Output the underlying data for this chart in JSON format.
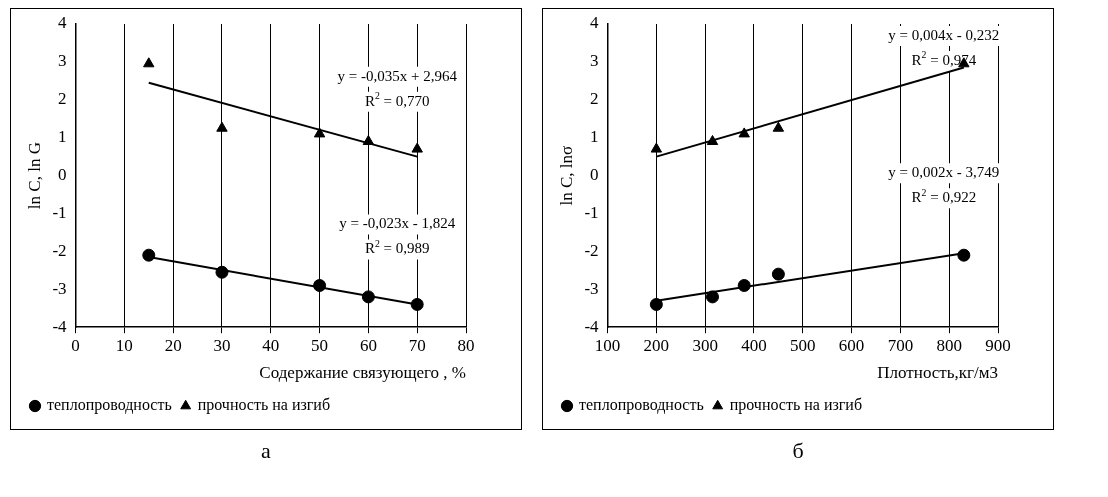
{
  "chart_data": [
    {
      "type": "scatter",
      "xlabel": "Содержание связующего , %",
      "ylabel": "ln C, ln G",
      "xlim": [
        0,
        80
      ],
      "xticks": [
        0,
        10,
        20,
        30,
        40,
        50,
        60,
        70,
        80
      ],
      "ylim": [
        -4,
        4
      ],
      "yticks": [
        -4,
        -3,
        -2,
        -1,
        0,
        1,
        2,
        3,
        4
      ],
      "grid": "x",
      "legend": "bottom left",
      "series": [
        {
          "name": "теплопроводность",
          "color": "#000000",
          "marker": "circle",
          "x": [
            15,
            30,
            50,
            60,
            70
          ],
          "values": [
            -2.1,
            -2.55,
            -2.9,
            -3.2,
            -3.4
          ]
        },
        {
          "name": "прочность на изгиб",
          "color": "#000000",
          "marker": "triangle",
          "x": [
            15,
            30,
            50,
            60,
            70
          ],
          "values": [
            2.95,
            1.25,
            1.1,
            0.9,
            0.7
          ]
        },
        {
          "type": "line",
          "color": "#000000",
          "marker": "none",
          "x": [
            15,
            70
          ],
          "values": [
            2.45,
            0.5
          ]
        },
        {
          "type": "line",
          "color": "#000000",
          "marker": "none",
          "x": [
            15,
            70
          ],
          "values": [
            -2.15,
            -3.4
          ]
        }
      ],
      "annotations": [
        "y = -0,035x + 2,964",
        "R$^{2}$ = 0,770",
        "y = -0,023x - 1,824",
        "R$^{2}$ = 0,989",
        "а"
      ]
    },
    {
      "type": "scatter",
      "xlabel": "Плотность,кг/м3",
      "ylabel": "ln C, lnσ",
      "xlim": [
        100,
        900
      ],
      "xticks": [
        100,
        200,
        300,
        400,
        500,
        600,
        700,
        800,
        900
      ],
      "ylim": [
        -4,
        4
      ],
      "yticks": [
        -4,
        -3,
        -2,
        -1,
        0,
        1,
        2,
        3,
        4
      ],
      "grid": "x",
      "legend": "bottom left",
      "series": [
        {
          "name": "теплопроводность",
          "color": "#000000",
          "marker": "circle",
          "x": [
            200,
            315,
            380,
            450,
            830
          ],
          "values": [
            -3.4,
            -3.2,
            -2.9,
            -2.6,
            -2.1
          ]
        },
        {
          "name": "прочность на изгиб",
          "color": "#000000",
          "marker": "triangle",
          "x": [
            200,
            315,
            380,
            450,
            830
          ],
          "values": [
            0.7,
            0.9,
            1.1,
            1.25,
            2.95
          ]
        },
        {
          "type": "line",
          "color": "#000000",
          "marker": "none",
          "x": [
            200,
            830
          ],
          "values": [
            0.5,
            2.85
          ]
        },
        {
          "type": "line",
          "color": "#000000",
          "marker": "none",
          "x": [
            200,
            830
          ],
          "values": [
            -3.3,
            -2.05
          ]
        }
      ],
      "annotations": [
        "y = 0,004x - 0,232",
        "R$^{2}$ = 0,974",
        "y = 0,002x - 3,749",
        "R$^{2}$ = 0,922",
        "б"
      ]
    }
  ]
}
